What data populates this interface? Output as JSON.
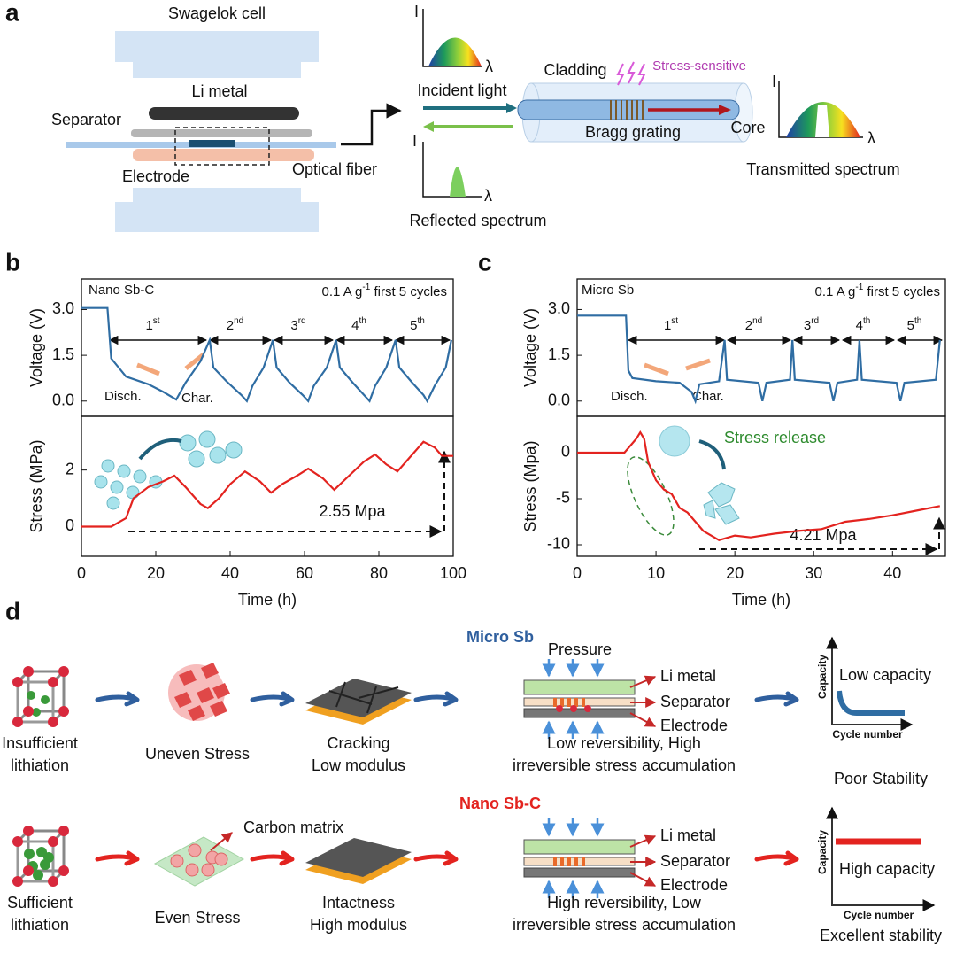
{
  "panel_labels": [
    "a",
    "b",
    "c",
    "d"
  ],
  "panel_a": {
    "cell": "Swagelok cell",
    "li_metal": "Li metal",
    "separator": "Separator",
    "electrode": "Electrode",
    "optical_fiber": "Optical fiber",
    "intensity": "I",
    "wavelength": "λ",
    "incident_light": "Incident light",
    "reflected_spectrum": "Reflected spectrum",
    "cladding": "Cladding",
    "stress_sensitive": "Stress-sensitive",
    "bragg_grating": "Bragg grating",
    "core": "Core",
    "transmitted_spectrum": "Transmitted spectrum"
  },
  "chart_data": [
    {
      "type": "line",
      "sample": "Nano Sb-C",
      "current": {
        "text": "0.1 A g",
        "sup": "-1",
        "rest": " first 5 cycles"
      },
      "cycles": [
        {
          "base": "1",
          "sup": "st"
        },
        {
          "base": "2",
          "sup": "nd"
        },
        {
          "base": "3",
          "sup": "rd"
        },
        {
          "base": "4",
          "sup": "th"
        },
        {
          "base": "5",
          "sup": "th"
        }
      ],
      "discharge": "Disch.",
      "charge": "Char.",
      "ylabel": "Voltage (V)",
      "xlim": [
        0,
        100
      ],
      "ylim": [
        -0.5,
        4.0
      ],
      "yticks": [
        {
          "value": 0,
          "label": "0.0"
        },
        {
          "value": 1.5,
          "label": "1.5"
        },
        {
          "value": 3,
          "label": "3.0"
        }
      ],
      "color": "#2f6da3",
      "x": [
        0,
        7,
        8,
        12,
        18,
        22,
        25.5,
        28,
        32,
        34.5,
        35.5,
        39,
        43,
        44.5,
        46,
        49,
        51.5,
        52.5,
        56,
        59.5,
        61,
        62.5,
        66,
        68.5,
        69.5,
        73,
        76,
        77.5,
        79,
        82,
        84.5,
        85.5,
        89,
        92,
        93,
        95,
        98,
        99.5
      ],
      "values": [
        3.05,
        3.05,
        1.4,
        0.8,
        0.55,
        0.3,
        0.05,
        0.6,
        1.3,
        2.0,
        1.1,
        0.65,
        0.2,
        0.0,
        0.5,
        1.1,
        2.0,
        1.1,
        0.6,
        0.2,
        0.0,
        0.5,
        1.1,
        2.0,
        1.1,
        0.6,
        0.2,
        0.0,
        0.5,
        1.1,
        2.0,
        1.1,
        0.6,
        0.2,
        0.0,
        0.5,
        1.1,
        2.0
      ]
    },
    {
      "type": "line",
      "ylabel": "Stress (MPa)",
      "xlabel": "Time (h)",
      "annotation": "2.55 Mpa",
      "xlim": [
        0,
        100
      ],
      "xticks": [
        0,
        20,
        40,
        60,
        80,
        100
      ],
      "ylim": [
        -1.05,
        3.9
      ],
      "yticks": [
        0,
        2
      ],
      "color": "#e3231f",
      "x": [
        0,
        8,
        12,
        14,
        18,
        22,
        25,
        28,
        32,
        34,
        37,
        40,
        44,
        48,
        51,
        54,
        58,
        61,
        65,
        68,
        72,
        76,
        79,
        82,
        85,
        88,
        92,
        95,
        97,
        100
      ],
      "values": [
        0,
        0,
        0.3,
        1.0,
        1.4,
        1.6,
        1.8,
        1.4,
        0.8,
        0.65,
        1.0,
        1.5,
        1.95,
        1.6,
        1.2,
        1.5,
        1.8,
        2.05,
        1.7,
        1.3,
        1.8,
        2.3,
        2.55,
        2.2,
        1.95,
        2.4,
        3.0,
        2.8,
        2.5,
        2.5
      ]
    },
    {
      "type": "line",
      "sample": "Micro Sb",
      "current": {
        "text": "0.1 A g",
        "sup": "-1",
        "rest": " first 5 cycles"
      },
      "cycles": [
        {
          "base": "1",
          "sup": "st"
        },
        {
          "base": "2",
          "sup": "nd"
        },
        {
          "base": "3",
          "sup": "rd"
        },
        {
          "base": "4",
          "sup": "th"
        },
        {
          "base": "5",
          "sup": "th"
        }
      ],
      "discharge": "Disch.",
      "charge": "Char.",
      "ylabel": "Voltage (V)",
      "xlim": [
        0,
        46.7
      ],
      "ylim": [
        -0.5,
        4.0
      ],
      "yticks": [
        {
          "value": 0,
          "label": "0.0"
        },
        {
          "value": 1.5,
          "label": "1.5"
        },
        {
          "value": 3,
          "label": "3.0"
        }
      ],
      "color": "#2f6da3",
      "x": [
        0,
        6.2,
        6.5,
        7,
        10,
        13,
        14.5,
        15,
        15.5,
        18,
        18.7,
        19,
        23,
        23.5,
        24,
        27,
        27.3,
        27.6,
        32,
        32.5,
        33,
        35.5,
        35.8,
        36.1,
        40.5,
        41,
        41.5,
        45.5,
        46
      ],
      "values": [
        2.8,
        2.8,
        1.0,
        0.75,
        0.65,
        0.6,
        0.3,
        0.0,
        0.55,
        0.65,
        2.0,
        0.7,
        0.6,
        0.0,
        0.6,
        0.7,
        2.0,
        0.7,
        0.6,
        0.0,
        0.6,
        0.7,
        2.0,
        0.7,
        0.6,
        0.0,
        0.6,
        0.7,
        2.0
      ]
    },
    {
      "type": "line",
      "ylabel": "Stress (Mpa)",
      "xlabel": "Time (h)",
      "annotation": "4.21 Mpa",
      "release": "Stress release",
      "xlim": [
        0,
        46.7
      ],
      "xticks": [
        0,
        10,
        20,
        30,
        40
      ],
      "ylim": [
        -11.25,
        3.94
      ],
      "yticks": [
        0,
        -5,
        -10
      ],
      "color": "#e3231f",
      "x": [
        0,
        6,
        7.5,
        8,
        8.5,
        9,
        10,
        11,
        12,
        13,
        14,
        15,
        16,
        18,
        20,
        22,
        25,
        28,
        31,
        34,
        37,
        40,
        43,
        46
      ],
      "values": [
        0,
        0,
        1.5,
        2.2,
        1.5,
        -1,
        -3,
        -4,
        -4.5,
        -6,
        -6.5,
        -7.5,
        -8.5,
        -9.5,
        -9,
        -9.2,
        -8.8,
        -8.5,
        -8.3,
        -7.5,
        -7.2,
        -6.8,
        -6.3,
        -5.8
      ]
    }
  ],
  "panel_d": {
    "rows": [
      {
        "title": "Micro Sb",
        "lithiation": [
          "Insufficient",
          "lithiation"
        ],
        "stress": "Uneven Stress",
        "film": [
          "Cracking",
          "Low modulus"
        ],
        "pressure": "Pressure",
        "layers": [
          "Li metal",
          "Separator",
          "Electrode"
        ],
        "result": [
          "Low reversibility, High",
          "irreversible stress accumulation"
        ],
        "capacity_axis": "Capacity",
        "cycle_axis": "Cycle number",
        "capacity": "Low capacity",
        "stability": "Poor Stability"
      },
      {
        "title": "Nano Sb-C",
        "lithiation": [
          "Sufficient",
          "lithiation"
        ],
        "stress": "Even Stress",
        "matrix": "Carbon matrix",
        "film": [
          "Intactness",
          "High modulus"
        ],
        "layers": [
          "Li metal",
          "Separator",
          "Electrode"
        ],
        "result": [
          "High reversibility, Low",
          "irreversible stress accumulation"
        ],
        "capacity_axis": "Capacity",
        "cycle_axis": "Cycle number",
        "capacity": "High capacity",
        "stability": "Excellent stability"
      }
    ]
  }
}
